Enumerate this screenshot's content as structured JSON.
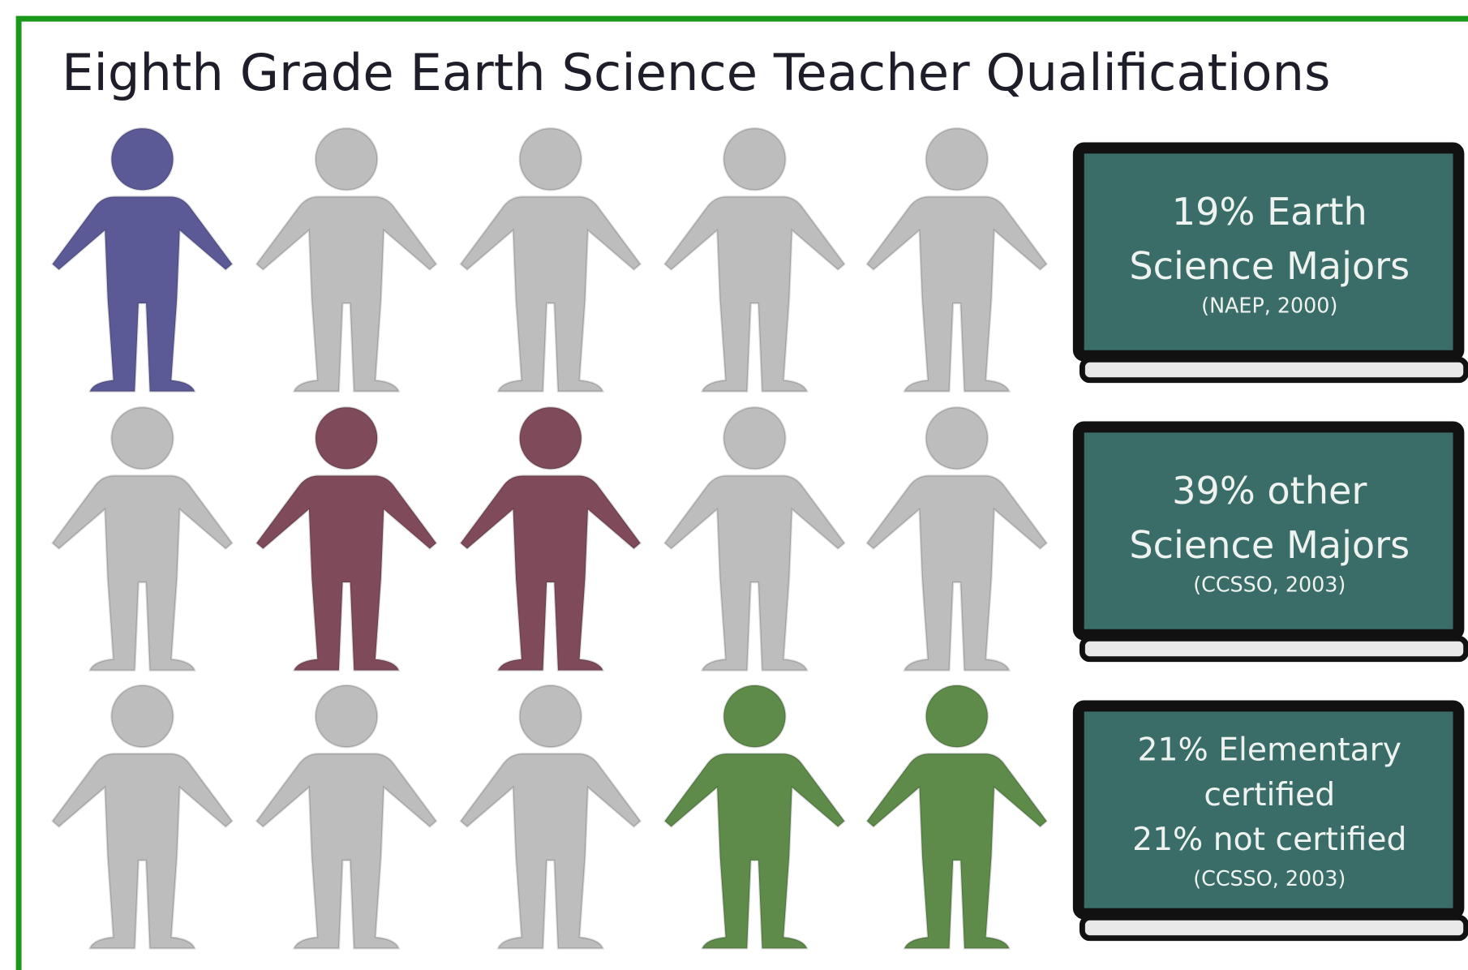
{
  "title": "Eighth Grade Earth Science Teacher Qualifications",
  "boards": [
    {
      "lines": [
        "19% Earth",
        "Science Majors"
      ],
      "source": "(NAEP, 2000)"
    },
    {
      "lines": [
        "39% other",
        "Science Majors"
      ],
      "source": "(CCSSO, 2003)"
    },
    {
      "lines": [
        "21% Elementary",
        "certified",
        "21% not certified"
      ],
      "source": "(CCSSO, 2003)"
    }
  ]
}
